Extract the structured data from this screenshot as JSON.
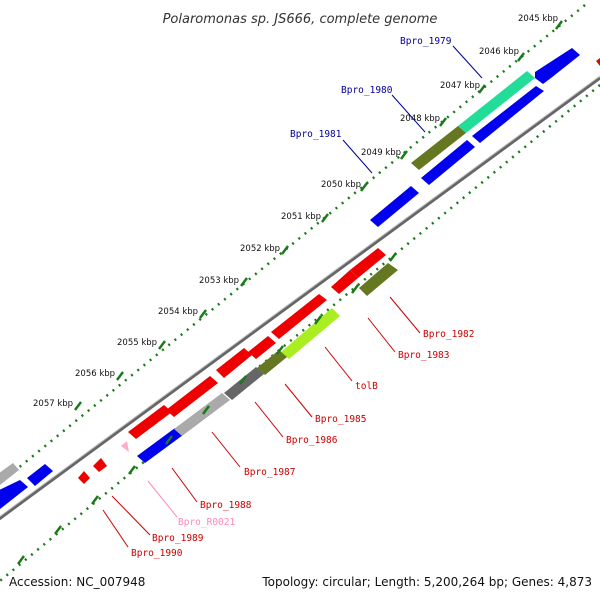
{
  "title": "Polaromonas sp. JS666, complete genome",
  "footer": {
    "accession": "Accession: NC_007948",
    "stats": "Topology: circular; Length: 5,200,264 bp; Genes: 4,873"
  },
  "colors": {
    "forward_label": "#000099",
    "reverse_label": "#cc0000",
    "rna_label": "#ff88bb",
    "backbone": "#666666",
    "tick_dots": "#1a7a1a",
    "gene_blue": "#0000ee",
    "gene_red": "#ee0000",
    "gene_teal": "#22dd99",
    "gene_olive": "#667722",
    "gene_lime": "#aaee22",
    "gene_gray_dark": "#666666",
    "gene_gray_light": "#aaaaaa",
    "gene_pink": "#ffaacc"
  },
  "kbp_ticks": [
    "2045 kbp",
    "2046 kbp",
    "2047 kbp",
    "2048 kbp",
    "2049 kbp",
    "2050 kbp",
    "2051 kbp",
    "2052 kbp",
    "2053 kbp",
    "2054 kbp",
    "2055 kbp",
    "2056 kbp",
    "2057 kbp"
  ],
  "gene_labels": {
    "forward": [
      "Bpro_1979",
      "Bpro_1980",
      "Bpro_1981"
    ],
    "reverse": [
      "Bpro_1982",
      "Bpro_1983",
      "tolB",
      "Bpro_1985",
      "Bpro_1986",
      "Bpro_1987",
      "Bpro_1988",
      "Bpro_R0021",
      "Bpro_1989",
      "Bpro_1990"
    ]
  }
}
